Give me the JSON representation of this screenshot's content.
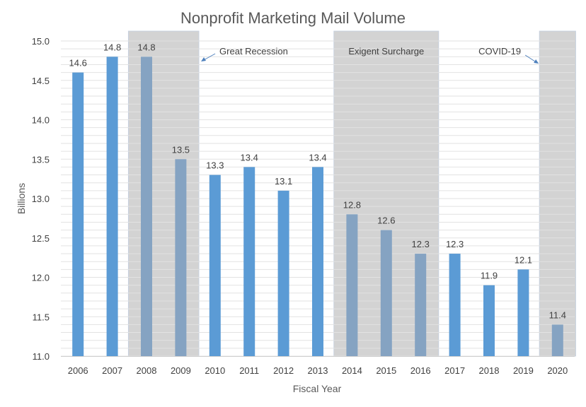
{
  "chart_data": {
    "type": "bar",
    "title": "Nonprofit Marketing Mail Volume",
    "xlabel": "Fiscal Year",
    "ylabel": "Billions",
    "categories": [
      "2006",
      "2007",
      "2008",
      "2009",
      "2010",
      "2011",
      "2012",
      "2013",
      "2014",
      "2015",
      "2016",
      "2017",
      "2018",
      "2019",
      "2020"
    ],
    "values": [
      14.6,
      14.8,
      14.8,
      13.5,
      13.3,
      13.4,
      13.1,
      13.4,
      12.8,
      12.6,
      12.3,
      12.3,
      11.9,
      12.1,
      11.4
    ],
    "data_labels": [
      "14.6",
      "14.8",
      "14.8",
      "13.5",
      "13.3",
      "13.4",
      "13.1",
      "13.4",
      "12.8",
      "12.6",
      "12.3",
      "12.3",
      "11.9",
      "12.1",
      "11.4"
    ],
    "ylim": [
      11.0,
      15.0
    ],
    "yticks": [
      "11.0",
      "11.5",
      "12.0",
      "12.5",
      "13.0",
      "13.5",
      "14.0",
      "14.5",
      "15.0"
    ],
    "grid": true,
    "colors": {
      "bar": "#5b9bd5",
      "bar_shaded": "#85a3c2",
      "shade": "#d3d3d3"
    },
    "shaded_periods": [
      {
        "label": "Great Recession",
        "from": "2008",
        "to": "2009"
      },
      {
        "label": "Exigent Surcharge",
        "from": "2014",
        "to": "2016"
      },
      {
        "label": "COVID-19",
        "from": "2020",
        "to": "2020"
      }
    ]
  }
}
